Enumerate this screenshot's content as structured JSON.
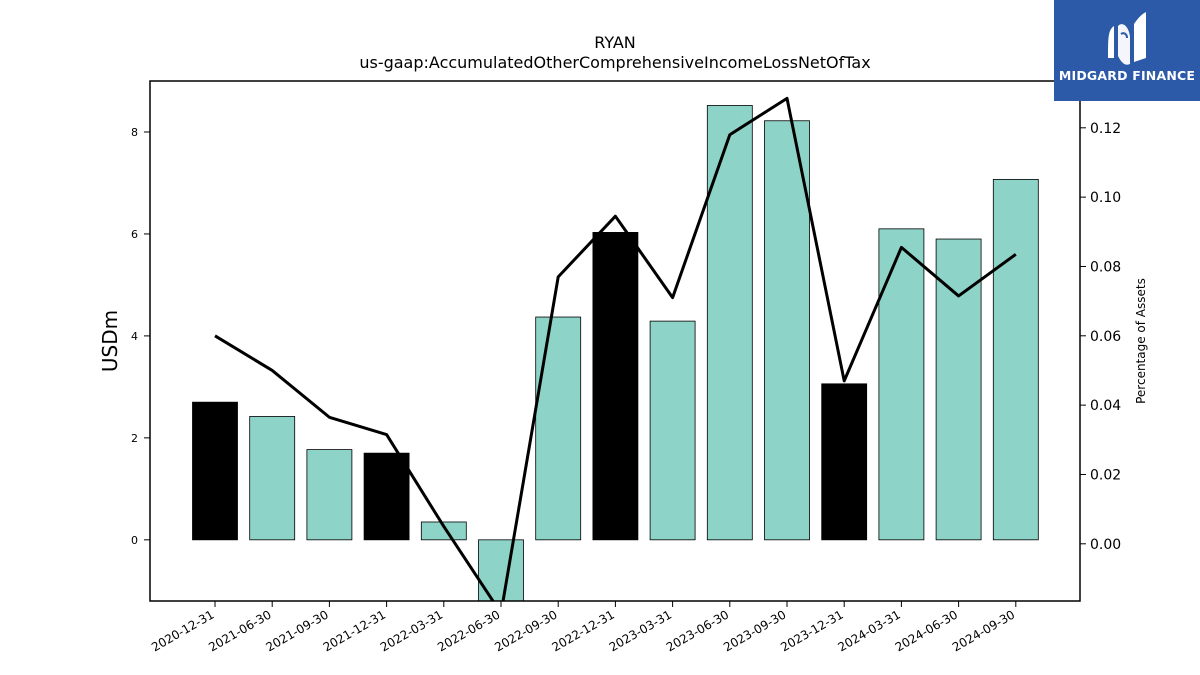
{
  "brand": {
    "name": "MIDGARD FINANCE",
    "bg_color": "#2c5aa8"
  },
  "chart_data": {
    "type": "bar",
    "title": "RYAN",
    "subtitle": "us-gaap:AccumulatedOtherComprehensiveIncomeLossNetOfTax",
    "ylabel": "USDm",
    "y2label": "Percentage of Assets",
    "categories": [
      "2020-12-31",
      "2021-06-30",
      "2021-09-30",
      "2021-12-31",
      "2022-03-31",
      "2022-06-30",
      "2022-09-30",
      "2022-12-31",
      "2023-03-31",
      "2023-06-30",
      "2023-09-30",
      "2023-12-31",
      "2024-03-31",
      "2024-06-30",
      "2024-09-30"
    ],
    "series": [
      {
        "type": "bar",
        "axis": "left",
        "values": [
          2.7,
          2.42,
          1.77,
          1.7,
          0.35,
          -1.3,
          4.37,
          6.03,
          4.29,
          8.52,
          8.22,
          3.06,
          6.1,
          5.9,
          7.07
        ],
        "highlight": [
          true,
          false,
          false,
          true,
          false,
          false,
          false,
          true,
          false,
          false,
          false,
          true,
          false,
          false,
          false
        ],
        "color": "#8dd3c7",
        "highlight_color": "#000000"
      },
      {
        "type": "line",
        "axis": "right",
        "values": [
          0.06,
          0.05,
          0.0365,
          0.0315,
          0.005,
          -0.02,
          0.077,
          0.0945,
          0.071,
          0.118,
          0.1285,
          0.047,
          0.0855,
          0.0715,
          0.0835
        ],
        "color": "#000000"
      }
    ],
    "ylim": [
      -1.2,
      9.0
    ],
    "y2lim": [
      -0.0165,
      0.1335
    ],
    "yticks": [
      0,
      2,
      4,
      6,
      8
    ],
    "y2ticks": [
      "0.00",
      "0.02",
      "0.04",
      "0.06",
      "0.08",
      "0.10",
      "0.12"
    ],
    "grid": false,
    "legend": "none"
  }
}
